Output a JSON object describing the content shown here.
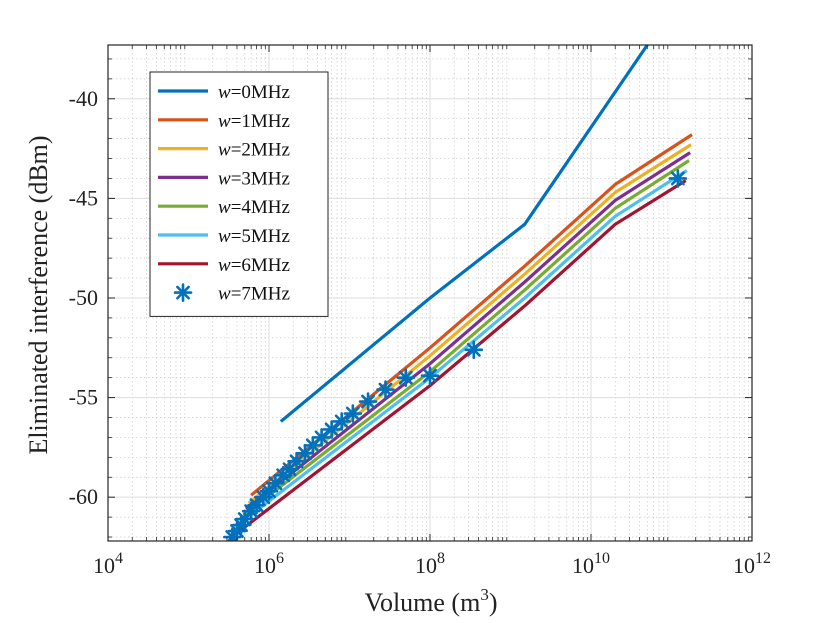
{
  "chart_data": {
    "type": "line",
    "xscale": "log",
    "xlim": [
      10000,
      1000000000000
    ],
    "ylim": [
      -62.2,
      -37.3
    ],
    "xlabel": "Volume (m",
    "xlabel_sup": "3",
    "xlabel_end": ")",
    "ylabel": "Eliminated interference (dBm)",
    "grid": true,
    "minor_grid": true,
    "legend_position": "top-left",
    "x_ticks": [
      {
        "base": "10",
        "exp": "4",
        "value": 10000
      },
      {
        "base": "10",
        "exp": "6",
        "value": 1000000
      },
      {
        "base": "10",
        "exp": "8",
        "value": 100000000
      },
      {
        "base": "10",
        "exp": "10",
        "value": 10000000000
      },
      {
        "base": "10",
        "exp": "12",
        "value": 1000000000000
      }
    ],
    "y_ticks": [
      {
        "label": "-40",
        "value": -40
      },
      {
        "label": "-45",
        "value": -45
      },
      {
        "label": "-50",
        "value": -50
      },
      {
        "label": "-55",
        "value": -55
      },
      {
        "label": "-60",
        "value": -60
      }
    ],
    "series": [
      {
        "name": "w=0MHz",
        "var": "w",
        "suffix": "=0MHz",
        "color": "#0072BD",
        "style": "line",
        "points": [
          [
            1400000,
            -56.2
          ],
          [
            100000000,
            -50.0
          ],
          [
            1500000000,
            -46.3
          ],
          [
            50000000000,
            -37.3
          ]
        ]
      },
      {
        "name": "w=1MHz",
        "var": "w",
        "suffix": "=1MHz",
        "color": "#D95319",
        "style": "line",
        "points": [
          [
            600000,
            -59.9
          ],
          [
            100000000,
            -52.5
          ],
          [
            1500000000,
            -48.4
          ],
          [
            20000000000,
            -44.3
          ],
          [
            180000000000,
            -41.8
          ]
        ]
      },
      {
        "name": "w=2MHz",
        "var": "w",
        "suffix": "=2MHz",
        "color": "#EDB120",
        "style": "line",
        "points": [
          [
            560000,
            -60.3
          ],
          [
            100000000,
            -52.9
          ],
          [
            1500000000,
            -48.8
          ],
          [
            20000000000,
            -44.7
          ],
          [
            175000000000,
            -42.3
          ]
        ]
      },
      {
        "name": "w=3MHz",
        "var": "w",
        "suffix": "=3MHz",
        "color": "#7E2F8E",
        "style": "line",
        "points": [
          [
            520000,
            -60.6
          ],
          [
            100000000,
            -53.3
          ],
          [
            1500000000,
            -49.2
          ],
          [
            20000000000,
            -45.1
          ],
          [
            170000000000,
            -42.7
          ]
        ]
      },
      {
        "name": "w=4MHz",
        "var": "w",
        "suffix": "=4MHz",
        "color": "#77AC30",
        "style": "line",
        "points": [
          [
            480000,
            -60.9
          ],
          [
            100000000,
            -53.7
          ],
          [
            1500000000,
            -49.6
          ],
          [
            20000000000,
            -45.5
          ],
          [
            165000000000,
            -43.1
          ]
        ]
      },
      {
        "name": "w=5MHz",
        "var": "w",
        "suffix": "=5MHz",
        "color": "#4DBEEE",
        "style": "line",
        "points": [
          [
            440000,
            -61.3
          ],
          [
            100000000,
            -54.0
          ],
          [
            1500000000,
            -50.0
          ],
          [
            20000000000,
            -45.9
          ],
          [
            155000000000,
            -43.6
          ]
        ]
      },
      {
        "name": "w=6MHz",
        "var": "w",
        "suffix": "=6MHz",
        "color": "#A2142F",
        "style": "line",
        "points": [
          [
            400000,
            -61.8
          ],
          [
            100000000,
            -54.4
          ],
          [
            1500000000,
            -50.4
          ],
          [
            20000000000,
            -46.3
          ],
          [
            150000000000,
            -44.1
          ]
        ]
      },
      {
        "name": "w=7MHz",
        "var": "w",
        "suffix": "=7MHz",
        "color": "#0072BD",
        "style": "marker",
        "points": [
          [
            350000,
            -62.0
          ],
          [
            400000,
            -61.7
          ],
          [
            450000,
            -61.4
          ],
          [
            500000,
            -61.1
          ],
          [
            600000,
            -60.7
          ],
          [
            700000,
            -60.4
          ],
          [
            850000,
            -60.0
          ],
          [
            1000000,
            -59.7
          ],
          [
            1200000,
            -59.3
          ],
          [
            1500000,
            -58.9
          ],
          [
            1800000,
            -58.6
          ],
          [
            2200000,
            -58.2
          ],
          [
            2800000,
            -57.8
          ],
          [
            3500000,
            -57.4
          ],
          [
            4500000,
            -57.0
          ],
          [
            6000000,
            -56.6
          ],
          [
            8000000,
            -56.2
          ],
          [
            11000000,
            -55.8
          ],
          [
            17000000,
            -55.2
          ],
          [
            28000000,
            -54.6
          ],
          [
            50000000,
            -54.0
          ],
          [
            100000000,
            -53.9
          ],
          [
            350000000,
            -52.6
          ],
          [
            120000000000,
            -44.0
          ]
        ]
      }
    ]
  }
}
